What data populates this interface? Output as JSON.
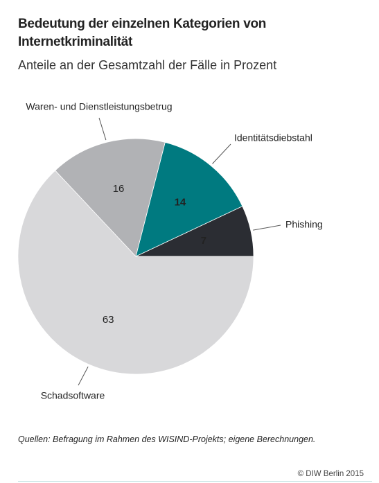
{
  "chart_data": {
    "type": "pie",
    "title": "Bedeutung der einzelnen Kategorien von Internetkriminalität",
    "subtitle": "Anteile an der Gesamtzahl der Fälle in Prozent",
    "categories": [
      "Phishing",
      "Identitätsdiebstahl",
      "Waren- und Dienstleistungsbetrug",
      "Schadsoftware"
    ],
    "values": [
      7,
      14,
      16,
      63
    ],
    "colors": [
      "#2b2d33",
      "#007a80",
      "#b1b2b5",
      "#d8d8da"
    ],
    "source": "Quellen: Befragung im Rahmen des WISIND-Projekts; eigene Berechnungen.",
    "copyright": "© DIW Berlin 2015"
  }
}
